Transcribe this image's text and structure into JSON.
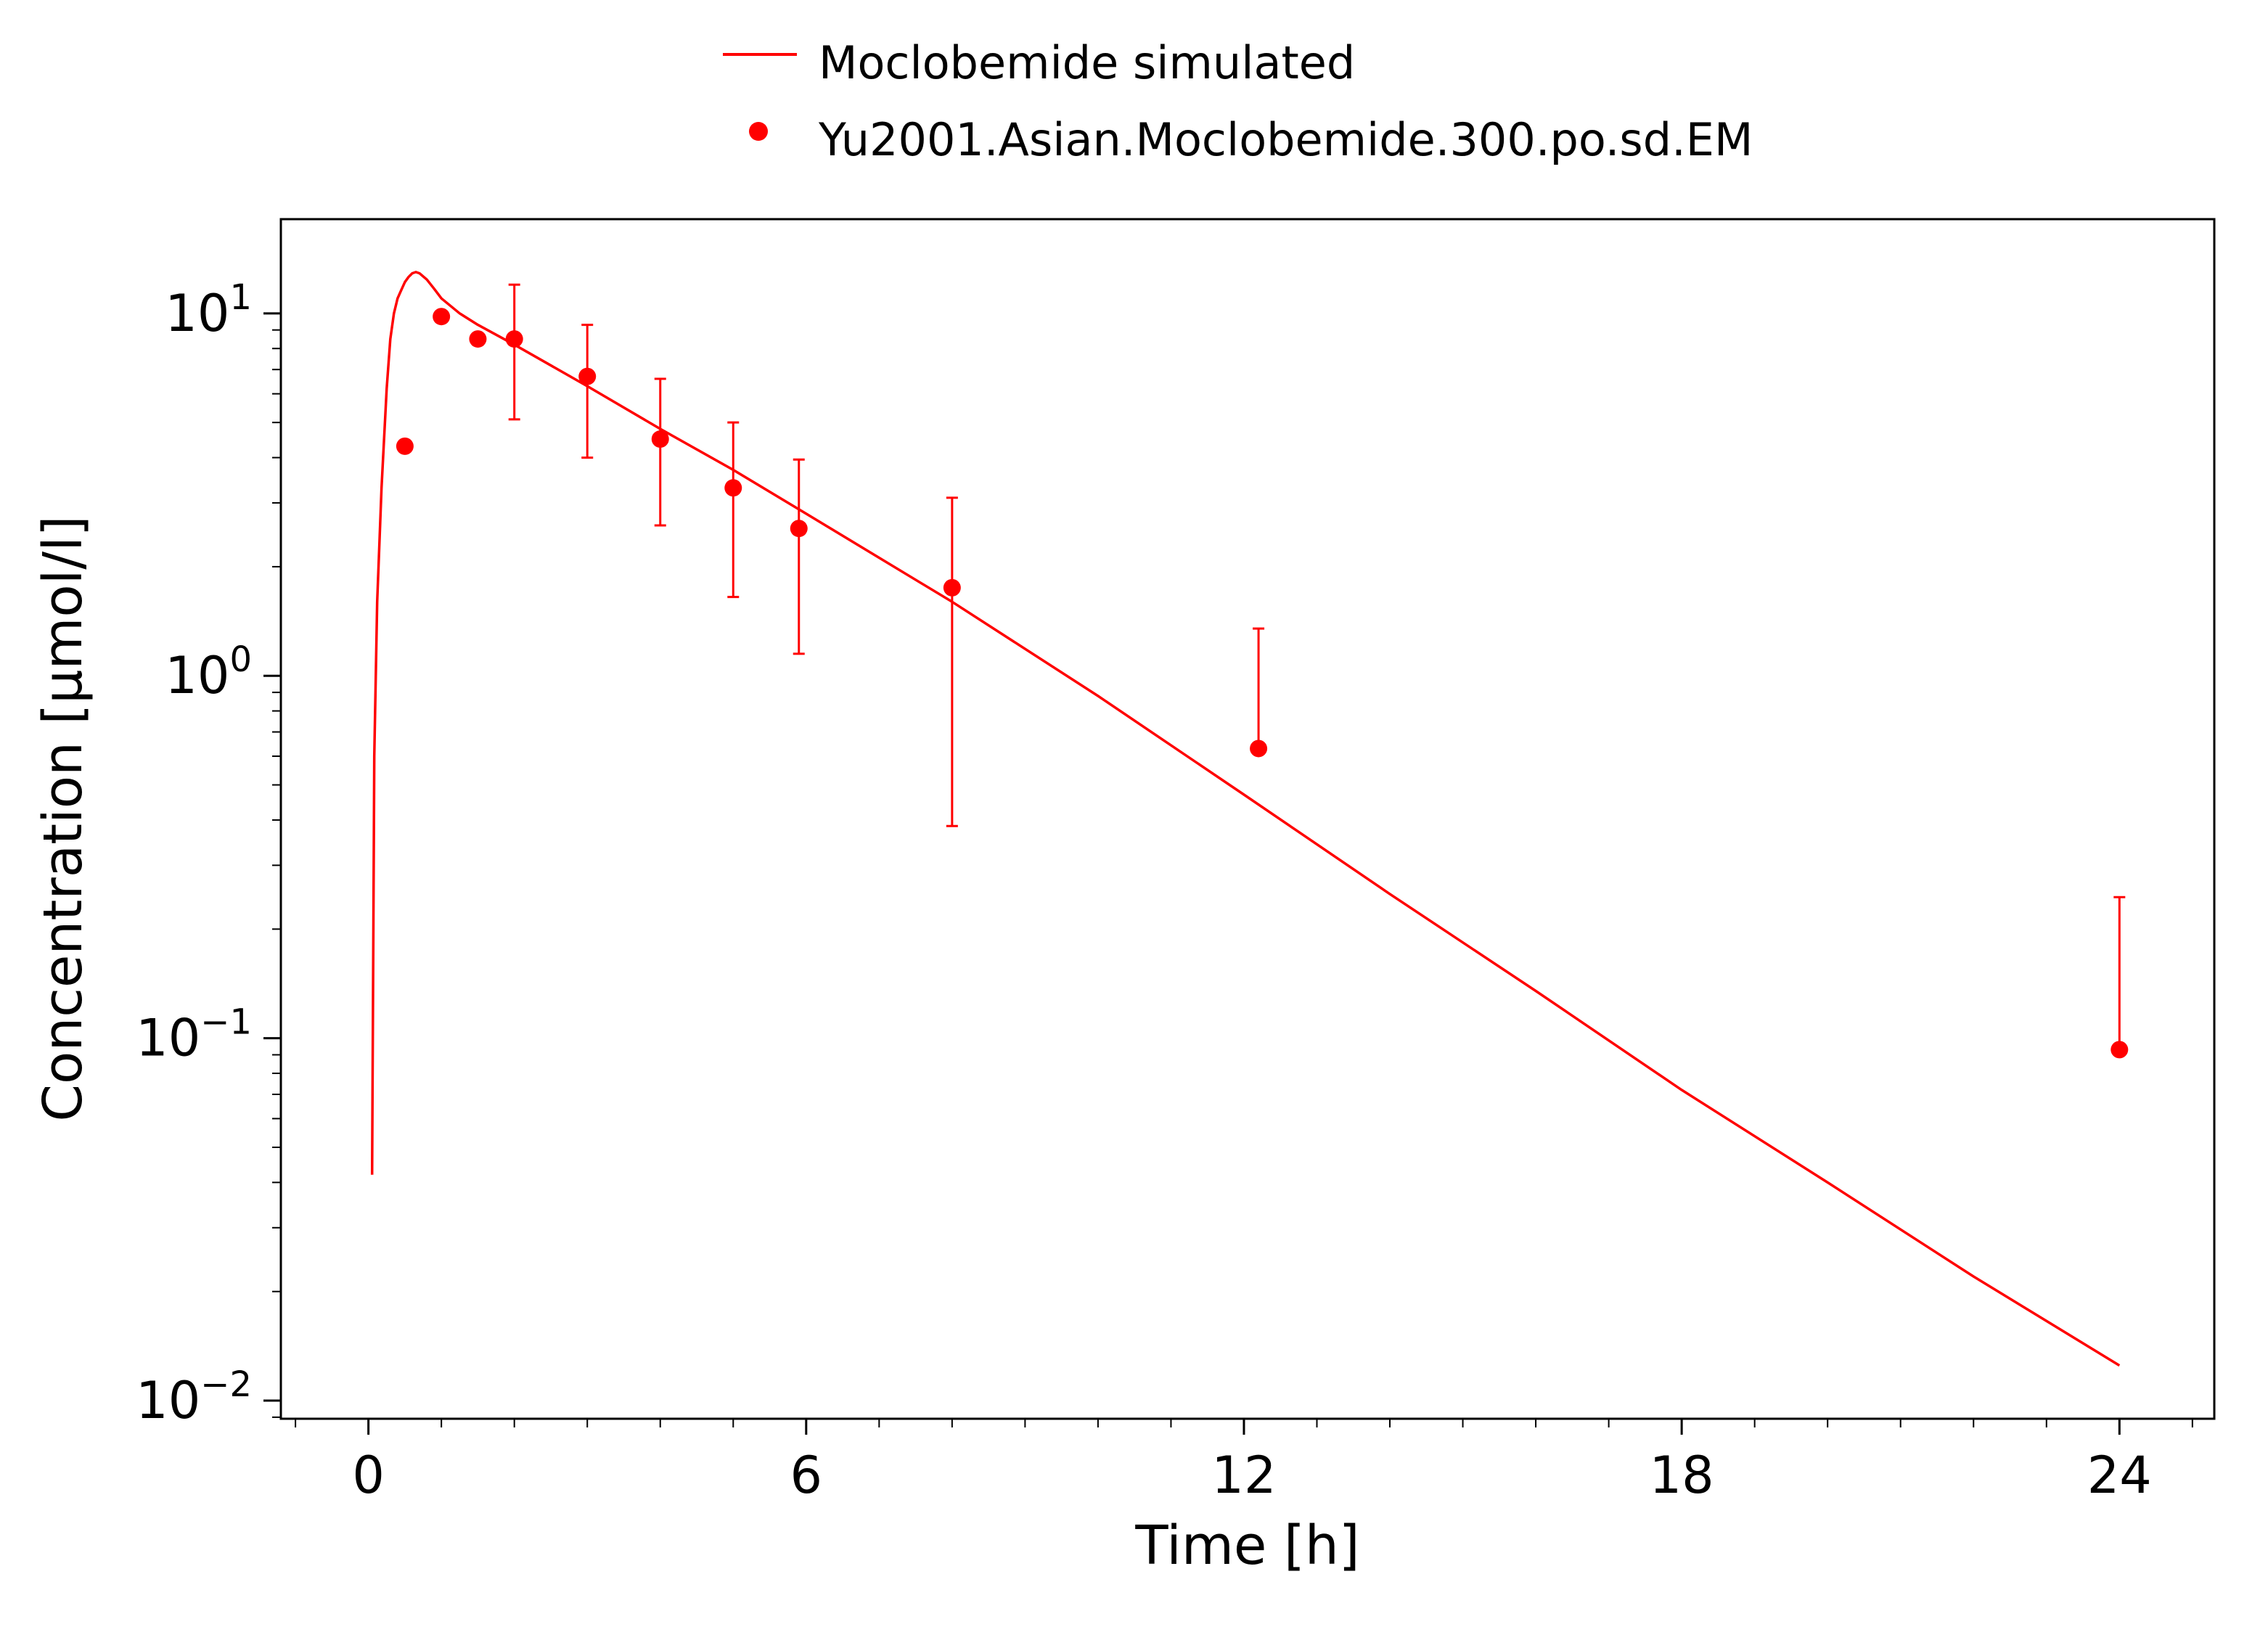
{
  "chart_data": {
    "type": "line",
    "title": "",
    "xlabel": "Time [h]",
    "ylabel": "Concentration [µmol/l]",
    "xlim": [
      -1.2,
      25.3
    ],
    "ylim_log10": [
      -2.05,
      1.26
    ],
    "yscale": "log",
    "grid": false,
    "legend_position": "top-center",
    "x_ticks": [
      0,
      6,
      12,
      18,
      24
    ],
    "x_tick_labels": [
      "0",
      "6",
      "12",
      "18",
      "24"
    ],
    "y_ticks": [
      {
        "value": 10,
        "base": "10",
        "exp": "1"
      },
      {
        "value": 1,
        "base": "10",
        "exp": "0"
      },
      {
        "value": 0.1,
        "base": "10",
        "exp": "−1"
      },
      {
        "value": 0.01,
        "base": "10",
        "exp": "−2"
      }
    ],
    "series": [
      {
        "name": "Moclobemide simulated",
        "kind": "line",
        "color": "#ff0000",
        "x": [
          0.05,
          0.08,
          0.12,
          0.18,
          0.25,
          0.3,
          0.35,
          0.4,
          0.45,
          0.5,
          0.55,
          0.6,
          0.65,
          0.7,
          0.8,
          0.9,
          1.0,
          1.25,
          1.5,
          2.0,
          3.0,
          4.0,
          5.0,
          6.0,
          8.0,
          10.0,
          12.0,
          14.0,
          16.0,
          18.0,
          20.0,
          22.0,
          24.0
        ],
        "y": [
          0.042,
          0.6,
          1.6,
          3.3,
          6.2,
          8.5,
          10.0,
          11.0,
          11.6,
          12.2,
          12.6,
          12.9,
          13.0,
          12.9,
          12.4,
          11.7,
          11.0,
          10.0,
          9.3,
          8.2,
          6.3,
          4.8,
          3.7,
          2.8,
          1.6,
          0.88,
          0.47,
          0.25,
          0.135,
          0.072,
          0.04,
          0.022,
          0.0125
        ]
      },
      {
        "name": "Yu2001.Asian.Moclobemide.300.po.sd.EM",
        "kind": "scatter",
        "color": "#ff0000",
        "points": [
          {
            "x": 0.5,
            "y": 4.3
          },
          {
            "x": 1.0,
            "y": 9.8
          },
          {
            "x": 1.5,
            "y": 8.5
          },
          {
            "x": 2.0,
            "y": 8.5,
            "err_low": 5.1,
            "err_high": 12.0
          },
          {
            "x": 3.0,
            "y": 6.7,
            "err_low": 4.0,
            "err_high": 9.3
          },
          {
            "x": 4.0,
            "y": 4.5,
            "err_low": 2.6,
            "err_high": 6.6
          },
          {
            "x": 5.0,
            "y": 3.3,
            "err_low": 1.65,
            "err_high": 5.0
          },
          {
            "x": 5.9,
            "y": 2.55,
            "err_low": 1.15,
            "err_high": 3.95
          },
          {
            "x": 8.0,
            "y": 1.75,
            "err_low": 0.385,
            "err_high": 3.1
          },
          {
            "x": 12.2,
            "y": 0.63,
            "err_low": 0.63,
            "err_high": 1.35
          },
          {
            "x": 24.0,
            "y": 0.093,
            "err_low": 0.093,
            "err_high": 0.245
          }
        ]
      }
    ]
  }
}
